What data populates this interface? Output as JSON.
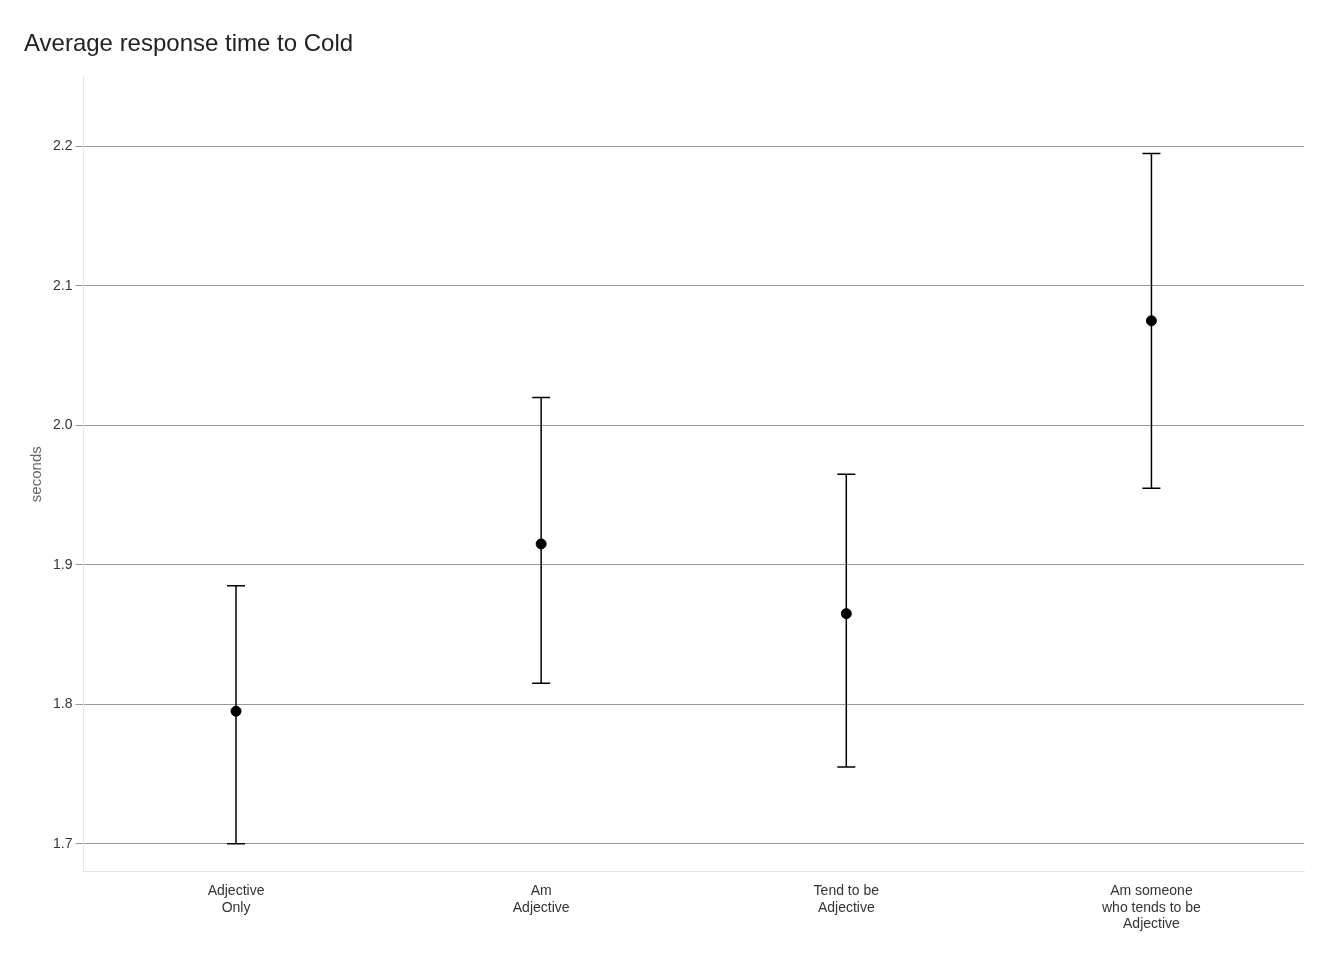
{
  "chart_data": {
    "type": "scatter",
    "title": "Average response time to Cold",
    "ylabel": "seconds",
    "categories": [
      "Adjective\nOnly",
      "Am\nAdjective",
      "Tend to be\nAdjective",
      "Am someone\nwho tends to be\nAdjective"
    ],
    "values": [
      1.795,
      1.915,
      1.865,
      2.075
    ],
    "lower": [
      1.7,
      1.815,
      1.755,
      1.955
    ],
    "upper": [
      1.885,
      2.02,
      1.965,
      2.195
    ],
    "color": "#000000",
    "ylim": [
      1.68,
      2.25
    ],
    "yticks": [
      1.7,
      1.8,
      1.9,
      {
        "value": 2.0,
        "label": "2.0"
      },
      2.1,
      2.2
    ],
    "grid": true
  }
}
